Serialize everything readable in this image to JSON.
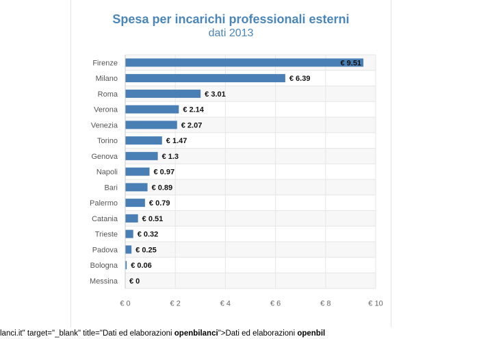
{
  "chart_data": {
    "type": "bar",
    "orientation": "horizontal",
    "title": "Spesa per incarichi professionali esterni",
    "subtitle": "dati 2013",
    "categories": [
      "Firenze",
      "Milano",
      "Roma",
      "Verona",
      "Venezia",
      "Torino",
      "Genova",
      "Napoli",
      "Bari",
      "Palermo",
      "Catania",
      "Trieste",
      "Padova",
      "Bologna",
      "Messina"
    ],
    "values": [
      9.51,
      6.39,
      3.01,
      2.14,
      2.07,
      1.47,
      1.3,
      0.97,
      0.89,
      0.79,
      0.51,
      0.32,
      0.25,
      0.06,
      0
    ],
    "data_labels": [
      "€ 9.51",
      "€ 6.39",
      "€ 3.01",
      "€ 2.14",
      "€ 2.07",
      "€ 1.47",
      "€ 1.3",
      "€ 0.97",
      "€ 0.89",
      "€ 0.79",
      "€ 0.51",
      "€ 0.32",
      "€ 0.25",
      "€ 0.06",
      "€ 0"
    ],
    "x_ticks": [
      0,
      2,
      4,
      6,
      8,
      10
    ],
    "x_tick_labels": [
      "€ 0",
      "€ 2",
      "€ 4",
      "€ 6",
      "€ 8",
      "€ 10"
    ],
    "xlim": [
      0,
      10
    ],
    "grid": true,
    "bar_color": "#4a7fb5",
    "title_color": "#4a86b8"
  },
  "footer": {
    "part1": "lanci.it\" target=\"_blank\" title=\"Dati ed elaborazioni ",
    "bold1": "openbilanci",
    "part2": "\">Dati ed elaborazioni ",
    "bold2": "openbil"
  }
}
